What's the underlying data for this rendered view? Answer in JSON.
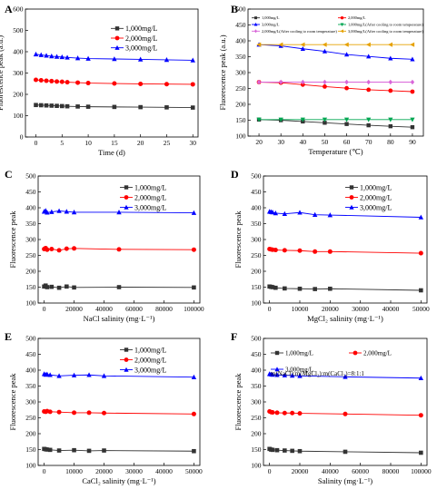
{
  "figure": {
    "panels": [
      {
        "letter": "A"
      },
      {
        "letter": "B"
      },
      {
        "letter": "C"
      },
      {
        "letter": "D"
      },
      {
        "letter": "E"
      },
      {
        "letter": "F"
      }
    ]
  },
  "colors": {
    "black": "#333333",
    "red": "#ff0000",
    "blue": "#0000ff",
    "green": "#00a651",
    "magenta": "#d966d9",
    "orange": "#e6a100"
  },
  "chart_data": [
    {
      "type": "line",
      "panel": "A",
      "xlabel": "Time (d)",
      "ylabel": "Fluorescence peak (a.u.)",
      "xlim": [
        -2,
        31
      ],
      "ylim": [
        0,
        600
      ],
      "xticks": [
        0,
        5,
        10,
        15,
        20,
        25,
        30
      ],
      "yticks": [
        0,
        100,
        200,
        300,
        400,
        500,
        600
      ],
      "legend_position": "top-right",
      "x": [
        0,
        1,
        2,
        3,
        4,
        5,
        6,
        8,
        10,
        15,
        20,
        25,
        30
      ],
      "series": [
        {
          "name": "1,000mg/L",
          "marker": "square",
          "color": "#333333",
          "values": [
            150,
            149,
            148,
            147,
            146,
            145,
            144,
            143,
            142,
            141,
            140,
            139,
            138
          ]
        },
        {
          "name": "2,000mg/L",
          "marker": "circle",
          "color": "#ff0000",
          "values": [
            268,
            266,
            264,
            262,
            260,
            259,
            257,
            255,
            253,
            251,
            249,
            248,
            247
          ]
        },
        {
          "name": "3,000mg/L",
          "marker": "triangle",
          "color": "#0000ff",
          "values": [
            388,
            385,
            382,
            379,
            377,
            375,
            373,
            370,
            368,
            366,
            364,
            362,
            360
          ]
        }
      ]
    },
    {
      "type": "line",
      "panel": "B",
      "xlabel": "Temperature (℃)",
      "ylabel": "Fluorescence peak (a.u.)",
      "xlim": [
        15,
        95
      ],
      "ylim": [
        100,
        500
      ],
      "xticks": [
        10,
        20,
        30,
        40,
        50,
        60,
        70,
        80,
        90
      ],
      "yticks": [
        100,
        150,
        200,
        250,
        300,
        350,
        400,
        450,
        500
      ],
      "legend_position": "top",
      "x": [
        20,
        30,
        40,
        50,
        60,
        70,
        80,
        90
      ],
      "series": [
        {
          "name": "1,000mg/L",
          "marker": "square",
          "color": "#333333",
          "values": [
            152,
            150,
            146,
            142,
            138,
            134,
            131,
            128
          ]
        },
        {
          "name": "2,000mg/L",
          "marker": "circle",
          "color": "#ff0000",
          "values": [
            270,
            268,
            262,
            256,
            251,
            246,
            243,
            240
          ]
        },
        {
          "name": "3,000mg/L",
          "marker": "triangle",
          "color": "#0000ff",
          "values": [
            388,
            384,
            375,
            367,
            357,
            351,
            345,
            342
          ]
        },
        {
          "name": "1,000mg/L(After cooling to room temperature)",
          "marker": "triangle-down",
          "color": "#00a651",
          "values": [
            152,
            152,
            152,
            152,
            152,
            152,
            152,
            152
          ]
        },
        {
          "name": "2,000mg/L(After cooling to room temperature)",
          "marker": "diamond",
          "color": "#d966d9",
          "values": [
            270,
            270,
            270,
            270,
            270,
            270,
            270,
            270
          ]
        },
        {
          "name": "3,000mg/L(After cooling to room temperature)",
          "marker": "triangle-left",
          "color": "#e6a100",
          "values": [
            388,
            388,
            388,
            388,
            388,
            388,
            388,
            388
          ]
        }
      ]
    },
    {
      "type": "line",
      "panel": "C",
      "xlabel": "NaCl salinity (mg·L⁻¹)",
      "ylabel": "Fluorescence peak",
      "xlim": [
        -4000,
        104000
      ],
      "ylim": [
        100,
        500
      ],
      "xticks": [
        0,
        20000,
        40000,
        60000,
        80000,
        100000
      ],
      "yticks": [
        100,
        150,
        200,
        250,
        300,
        350,
        400,
        450,
        500
      ],
      "legend_position": "top-right",
      "x": [
        0,
        1000,
        2000,
        5000,
        10000,
        15000,
        20000,
        50000,
        100000
      ],
      "series": [
        {
          "name": "1,000mg/L",
          "marker": "square",
          "color": "#333333",
          "values": [
            152,
            155,
            150,
            151,
            148,
            152,
            149,
            150,
            149
          ]
        },
        {
          "name": "2,000mg/L",
          "marker": "circle",
          "color": "#ff0000",
          "values": [
            270,
            273,
            268,
            270,
            266,
            271,
            272,
            269,
            268
          ]
        },
        {
          "name": "3,000mg/L",
          "marker": "triangle",
          "color": "#0000ff",
          "values": [
            388,
            391,
            385,
            387,
            390,
            388,
            386,
            386,
            384
          ]
        }
      ]
    },
    {
      "type": "line",
      "panel": "D",
      "xlabel": "MgCl₂ salinity (mg·L⁻¹)",
      "ylabel": "Fluorescence peak",
      "xlim": [
        -2000,
        52000
      ],
      "ylim": [
        100,
        500
      ],
      "xticks": [
        0,
        10000,
        20000,
        30000,
        40000,
        50000
      ],
      "yticks": [
        100,
        150,
        200,
        250,
        300,
        350,
        400,
        450,
        500
      ],
      "legend_position": "top-right",
      "x": [
        0,
        500,
        1000,
        2000,
        5000,
        10000,
        15000,
        20000,
        50000
      ],
      "series": [
        {
          "name": "1,000mg/L",
          "marker": "square",
          "color": "#333333",
          "values": [
            152,
            151,
            150,
            148,
            146,
            145,
            144,
            145,
            140
          ]
        },
        {
          "name": "2,000mg/L",
          "marker": "circle",
          "color": "#ff0000",
          "values": [
            270,
            269,
            268,
            267,
            266,
            265,
            262,
            262,
            257
          ]
        },
        {
          "name": "3,000mg/L",
          "marker": "triangle",
          "color": "#0000ff",
          "values": [
            388,
            387,
            386,
            383,
            381,
            385,
            378,
            377,
            370
          ]
        }
      ]
    },
    {
      "type": "line",
      "panel": "E",
      "xlabel": "CaCl₂ salinity (mg·L⁻¹)",
      "ylabel": "Fluorescence peak",
      "xlim": [
        -2000,
        52000
      ],
      "ylim": [
        100,
        500
      ],
      "xticks": [
        0,
        10000,
        20000,
        30000,
        40000,
        50000
      ],
      "yticks": [
        100,
        150,
        200,
        250,
        300,
        350,
        400,
        450,
        500
      ],
      "legend_position": "top-right",
      "x": [
        0,
        500,
        1000,
        2000,
        5000,
        10000,
        15000,
        20000,
        50000
      ],
      "series": [
        {
          "name": "1,000mg/L",
          "marker": "square",
          "color": "#333333",
          "values": [
            152,
            151,
            150,
            149,
            147,
            148,
            146,
            147,
            145
          ]
        },
        {
          "name": "2,000mg/L",
          "marker": "circle",
          "color": "#ff0000",
          "values": [
            270,
            269,
            271,
            269,
            268,
            266,
            266,
            265,
            262
          ]
        },
        {
          "name": "3,000mg/L",
          "marker": "triangle",
          "color": "#0000ff",
          "values": [
            388,
            386,
            387,
            385,
            382,
            384,
            385,
            382,
            378
          ]
        }
      ]
    },
    {
      "type": "line",
      "panel": "F",
      "xlabel": "Salinity (mg·L⁻¹)",
      "ylabel": "Fluorescence peak",
      "xlim": [
        -4000,
        104000
      ],
      "ylim": [
        100,
        500
      ],
      "xticks": [
        0,
        20000,
        40000,
        60000,
        80000,
        100000
      ],
      "yticks": [
        100,
        150,
        200,
        250,
        300,
        350,
        400,
        450,
        500
      ],
      "legend_position": "top-right",
      "annotation": "m(NaCl):m(MgCl₂):m(CaCl₂)=8:1:1",
      "x": [
        0,
        1000,
        2000,
        5000,
        10000,
        15000,
        20000,
        50000,
        100000
      ],
      "series": [
        {
          "name": "1,000mg/L",
          "marker": "square",
          "color": "#333333",
          "values": [
            152,
            150,
            149,
            148,
            147,
            146,
            145,
            143,
            140
          ]
        },
        {
          "name": "2,000mg/L",
          "marker": "circle",
          "color": "#ff0000",
          "values": [
            270,
            268,
            267,
            266,
            265,
            265,
            264,
            262,
            258
          ]
        },
        {
          "name": "3,000mg/L",
          "marker": "triangle",
          "color": "#0000ff",
          "values": [
            388,
            387,
            386,
            385,
            384,
            383,
            382,
            379,
            375
          ]
        }
      ]
    }
  ]
}
